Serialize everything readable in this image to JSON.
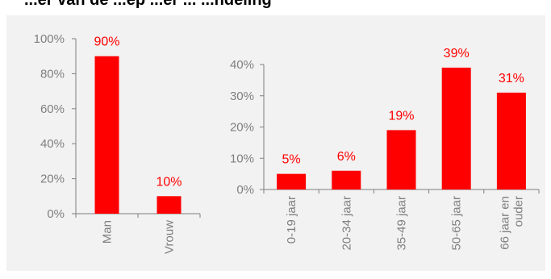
{
  "header": {
    "title": "...er van de ...ep ...er ... ...ndeling"
  },
  "colors": {
    "panel_background": "#f2f2f2",
    "bar": "#ff0000",
    "data_label": "#ff0000",
    "axis_text": "#7f7f7f",
    "axis_line": "#7f7f7f"
  },
  "chart_data": [
    {
      "type": "bar",
      "title": "",
      "xlabel": "",
      "ylabel": "",
      "categories": [
        "Man",
        "Vrouw"
      ],
      "values": [
        90,
        10
      ],
      "value_labels": [
        "90%",
        "10%"
      ],
      "ylim": [
        0,
        100
      ],
      "yticks": [
        0,
        20,
        40,
        60,
        80,
        100
      ],
      "ytick_labels": [
        "0%",
        "20%",
        "40%",
        "60%",
        "80%",
        "100%"
      ],
      "grid": false,
      "legend": "none"
    },
    {
      "type": "bar",
      "title": "",
      "xlabel": "",
      "ylabel": "",
      "categories": [
        "0-19 jaar",
        "20-34 jaar",
        "35-49 jaar",
        "50-65 jaar",
        "66 jaar en ouder"
      ],
      "category_lines": [
        [
          "0-19 jaar"
        ],
        [
          "20-34 jaar"
        ],
        [
          "35-49 jaar"
        ],
        [
          "50-65 jaar"
        ],
        [
          "66 jaar en",
          "ouder"
        ]
      ],
      "values": [
        5,
        6,
        19,
        39,
        31
      ],
      "value_labels": [
        "5%",
        "6%",
        "19%",
        "39%",
        "31%"
      ],
      "ylim": [
        0,
        40
      ],
      "yticks": [
        0,
        10,
        20,
        30,
        40
      ],
      "ytick_labels": [
        "0%",
        "10%",
        "20%",
        "30%",
        "40%"
      ],
      "grid": false,
      "legend": "none"
    }
  ]
}
